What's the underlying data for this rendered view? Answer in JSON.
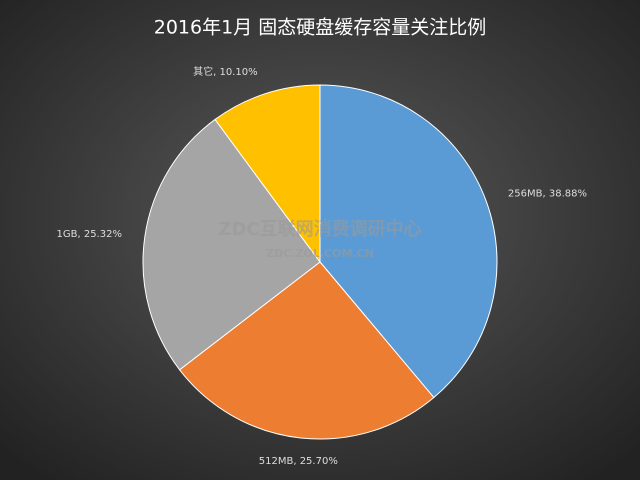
{
  "chart_data": {
    "type": "pie",
    "title": "2016年1月 固态硬盘缓存容量关注比例",
    "categories": [
      "256MB",
      "512MB",
      "1GB",
      "其它"
    ],
    "values": [
      38.88,
      25.7,
      25.32,
      10.1
    ],
    "value_labels": [
      "256MB, 38.88%",
      "512MB, 25.70%",
      "1GB, 25.32%",
      "其它, 10.10%"
    ],
    "colors": [
      "#5b9bd5",
      "#ed7d31",
      "#a5a5a5",
      "#ffc000"
    ],
    "watermark": [
      "ZDC互联网消费调研中心",
      "ZDC.ZOL.COM.CN"
    ]
  }
}
